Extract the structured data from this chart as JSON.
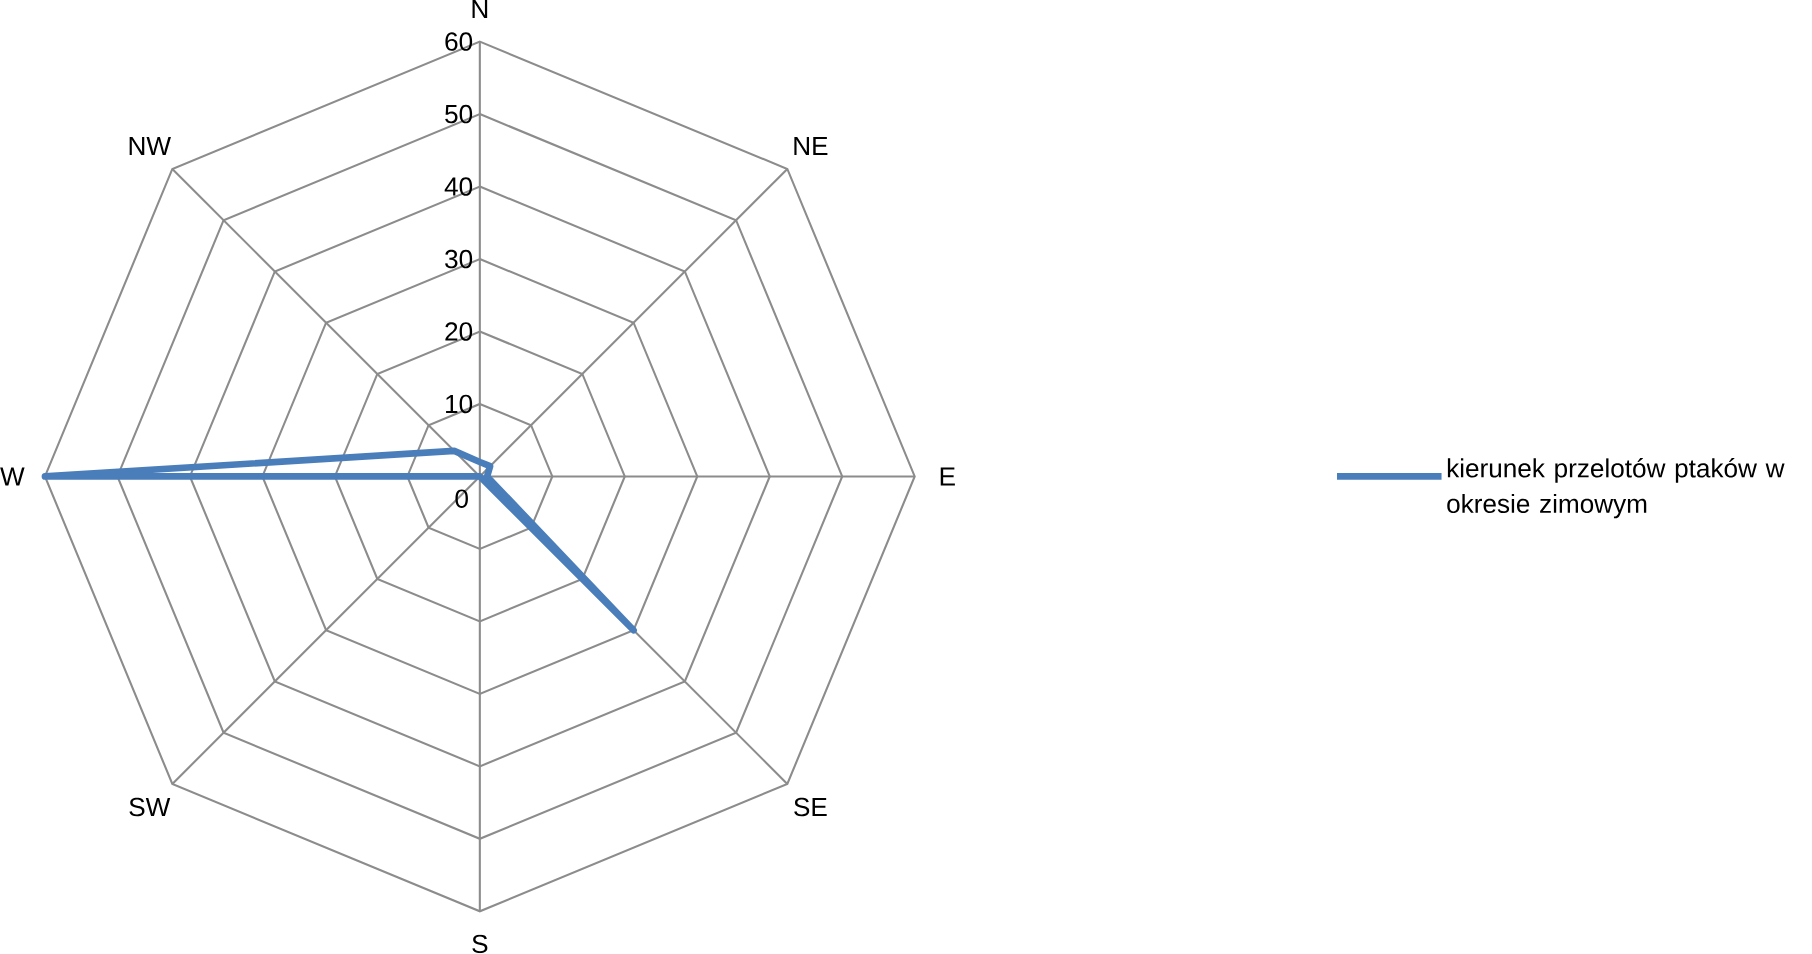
{
  "chart_data": {
    "type": "radar",
    "categories": [
      "N",
      "NE",
      "E",
      "SE",
      "S",
      "SW",
      "W",
      "NW"
    ],
    "series": [
      {
        "name": "kierunek przelotów ptaków w okresie zimowym",
        "color": "#4a7ebb",
        "values": [
          2,
          2,
          1,
          30,
          0,
          0,
          60,
          5
        ]
      }
    ],
    "ylim": [
      0,
      60
    ],
    "yticks": [
      0,
      10,
      20,
      30,
      40,
      50,
      60
    ],
    "grid": true,
    "legend": "right"
  }
}
